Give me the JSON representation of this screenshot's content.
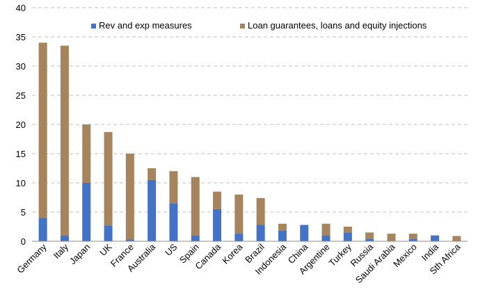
{
  "chart_data": {
    "type": "bar",
    "stacked": true,
    "title": "",
    "xlabel": "",
    "ylabel": "",
    "ylim": [
      0,
      40
    ],
    "yticks": [
      0,
      5,
      10,
      15,
      20,
      25,
      30,
      35,
      40
    ],
    "grid": true,
    "legend_position": "top-right",
    "categories": [
      "Germany",
      "Italy",
      "Japan",
      "UK",
      "France",
      "Australia",
      "US",
      "Spain",
      "Canada",
      "Korea",
      "Brazil",
      "Indonesia",
      "China",
      "Argentine",
      "Turkey",
      "Russia",
      "Saudi Arabia",
      "Mexico",
      "India",
      "Sth Africa"
    ],
    "series": [
      {
        "name": "Rev and exp measures",
        "color": "#4472c4",
        "values": [
          4.0,
          1.0,
          10.0,
          2.7,
          0.3,
          10.5,
          6.5,
          1.0,
          5.5,
          1.3,
          2.8,
          1.8,
          2.8,
          1.0,
          1.5,
          0.4,
          0.0,
          0.4,
          1.0,
          0.0
        ]
      },
      {
        "name": "Loan guarantees, loans and equity injections",
        "color": "#a5845e",
        "values": [
          30.0,
          32.5,
          10.0,
          16.0,
          14.7,
          2.0,
          5.5,
          10.0,
          3.0,
          6.7,
          4.6,
          1.2,
          0.0,
          2.0,
          1.0,
          1.1,
          1.3,
          0.9,
          0.0,
          0.9
        ]
      }
    ]
  }
}
